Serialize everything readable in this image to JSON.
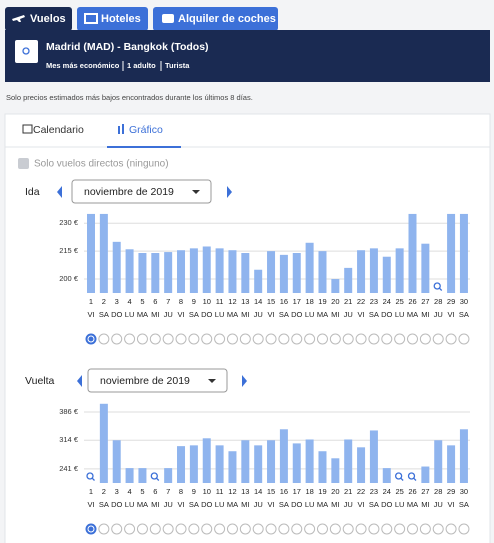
{
  "nav": {
    "tabs": [
      "Vuelos",
      "Hoteles",
      "Alquiler de coches"
    ]
  },
  "search": {
    "route": "Madrid (MAD) - Bangkok (Todos)",
    "details": [
      "Mes más económico",
      "1 adulto",
      "Turista"
    ]
  },
  "note": "Solo precios estimados más bajos encontrados durante los últimos 8 días.",
  "views": [
    "Calendario",
    "Gráfico"
  ],
  "filter": "Solo vuelos directos (ninguno)",
  "chart_data": [
    {
      "type": "bar",
      "label": "Ida",
      "month": "noviembre de 2019",
      "categories": [
        "1",
        "2",
        "3",
        "4",
        "5",
        "6",
        "7",
        "8",
        "9",
        "10",
        "11",
        "12",
        "13",
        "14",
        "15",
        "16",
        "17",
        "18",
        "19",
        "20",
        "21",
        "22",
        "23",
        "24",
        "25",
        "26",
        "27",
        "28",
        "29",
        "30"
      ],
      "weekdays": [
        "VI",
        "SA",
        "DO",
        "LU",
        "MA",
        "MI",
        "JU",
        "VI",
        "SA",
        "DO",
        "LU",
        "MA",
        "MI",
        "JU",
        "VI",
        "SA",
        "DO",
        "LU",
        "MA",
        "MI",
        "JU",
        "VI",
        "SA",
        "DO",
        "LU",
        "MA",
        "MI",
        "JU",
        "VI",
        "SA"
      ],
      "values": [
        235,
        235,
        220,
        216,
        214,
        214,
        214.5,
        215.5,
        216.5,
        217.5,
        216.5,
        215.5,
        214,
        205,
        215,
        213,
        214,
        219.5,
        215,
        200,
        206,
        215.5,
        216.5,
        212,
        216.5,
        235,
        219,
        null,
        235,
        235
      ],
      "color": "#8fb4ee",
      "ylim": [
        192.5,
        235.5
      ],
      "yticks": [
        {
          "value": 230,
          "label": "230 €"
        },
        {
          "value": 215,
          "label": "215 €"
        },
        {
          "value": 200,
          "label": "200 €"
        }
      ]
    },
    {
      "type": "bar",
      "label": "Vuelta",
      "month": "noviembre de 2019",
      "categories": [
        "1",
        "2",
        "3",
        "4",
        "5",
        "6",
        "7",
        "8",
        "9",
        "10",
        "11",
        "12",
        "13",
        "14",
        "15",
        "16",
        "17",
        "18",
        "19",
        "20",
        "21",
        "22",
        "23",
        "24",
        "25",
        "26",
        "27",
        "28",
        "29",
        "30"
      ],
      "weekdays": [
        "VI",
        "SA",
        "DO",
        "LU",
        "MA",
        "MI",
        "JU",
        "VI",
        "SA",
        "DO",
        "LU",
        "MA",
        "MI",
        "JU",
        "VI",
        "SA",
        "DO",
        "LU",
        "MA",
        "MI",
        "JU",
        "VI",
        "SA",
        "DO",
        "LU",
        "MA",
        "MI",
        "JU",
        "VI",
        "SA"
      ],
      "values": [
        null,
        407,
        314,
        243,
        243,
        null,
        243,
        299,
        301,
        319,
        301,
        286,
        314,
        301,
        314,
        342,
        306,
        316,
        286,
        268,
        316,
        296,
        339,
        243,
        null,
        null,
        247,
        314,
        301,
        342
      ],
      "color": "#8fb4ee",
      "ylim": [
        205,
        409
      ],
      "yticks": [
        {
          "value": 386,
          "label": "386 €"
        },
        {
          "value": 314,
          "label": "314 €"
        },
        {
          "value": 241,
          "label": "241 €"
        }
      ]
    }
  ]
}
